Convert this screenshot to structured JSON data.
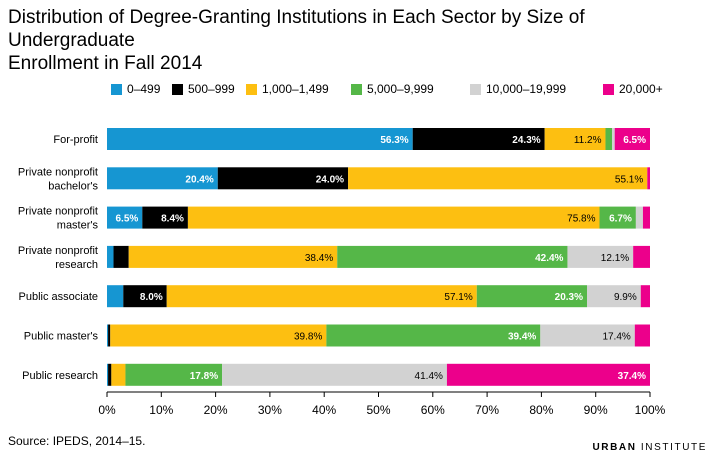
{
  "header": {
    "title_line1": "Distribution of Degree-Granting Institutions in Each Sector by Size of Undergraduate",
    "title_line2": "Enrollment in Fall 2014"
  },
  "footer": {
    "source": "Source: IPEDS, 2014–15.",
    "brand_part1": "URBAN",
    "brand_part2": " INSTITUTE"
  },
  "colors": {
    "0–499": "#1696d2",
    "500–999": "#000000",
    "1,000–1,499": "#fdbf11",
    "5,000–9,999": "#55b748",
    "10,000–19,999": "#d2d2d2",
    "20,000+": "#ec008b"
  },
  "chart_data": {
    "type": "bar",
    "orientation": "horizontal",
    "stacked": true,
    "title": "Distribution of Degree-Granting Institutions in Each Sector by Size of Undergraduate Enrollment in Fall 2014",
    "xlabel": "",
    "ylabel": "",
    "xlim": [
      0,
      100
    ],
    "xticks": [
      "0%",
      "10%",
      "20%",
      "30%",
      "40%",
      "50%",
      "60%",
      "70%",
      "80%",
      "90%",
      "100%"
    ],
    "grid": false,
    "legend_position": "top",
    "categories": [
      [
        "For-profit"
      ],
      [
        "Private nonprofit",
        "bachelor's"
      ],
      [
        "Private nonprofit",
        "master's"
      ],
      [
        "Private nonprofit",
        "research"
      ],
      [
        "Public associate"
      ],
      [
        "Public master's"
      ],
      [
        "Public research"
      ]
    ],
    "series": [
      {
        "name": "0–499",
        "values": [
          56.3,
          20.4,
          6.5,
          1.2,
          3.0,
          0.2,
          0.2
        ],
        "labels": [
          "56.3%",
          "20.4%",
          "6.5%",
          "",
          "",
          "",
          ""
        ]
      },
      {
        "name": "500–999",
        "values": [
          24.3,
          24.0,
          8.4,
          2.8,
          8.0,
          0.4,
          0.6
        ],
        "labels": [
          "24.3%",
          "24.0%",
          "8.4%",
          "",
          "8.0%",
          "",
          ""
        ]
      },
      {
        "name": "1,000–1,499",
        "values": [
          11.2,
          55.1,
          75.8,
          38.4,
          57.1,
          39.8,
          2.6
        ],
        "labels": [
          "11.2%",
          "55.1%",
          "75.8%",
          "38.4%",
          "57.1%",
          "39.8%",
          ""
        ]
      },
      {
        "name": "5,000–9,999",
        "values": [
          1.2,
          0.0,
          6.7,
          42.4,
          20.3,
          39.4,
          17.8
        ],
        "labels": [
          "",
          "",
          "6.7%",
          "42.4%",
          "20.3%",
          "39.4%",
          "17.8%"
        ]
      },
      {
        "name": "10,000–19,999",
        "values": [
          0.5,
          0.0,
          1.3,
          12.1,
          9.9,
          17.4,
          41.4
        ],
        "labels": [
          "",
          "",
          "",
          "12.1%",
          "9.9%",
          "17.4%",
          "41.4%"
        ]
      },
      {
        "name": "20,000+",
        "values": [
          6.5,
          0.5,
          1.3,
          3.1,
          1.7,
          2.8,
          37.4
        ],
        "labels": [
          "6.5%",
          "",
          "",
          "",
          "",
          "",
          "37.4%"
        ]
      }
    ]
  }
}
